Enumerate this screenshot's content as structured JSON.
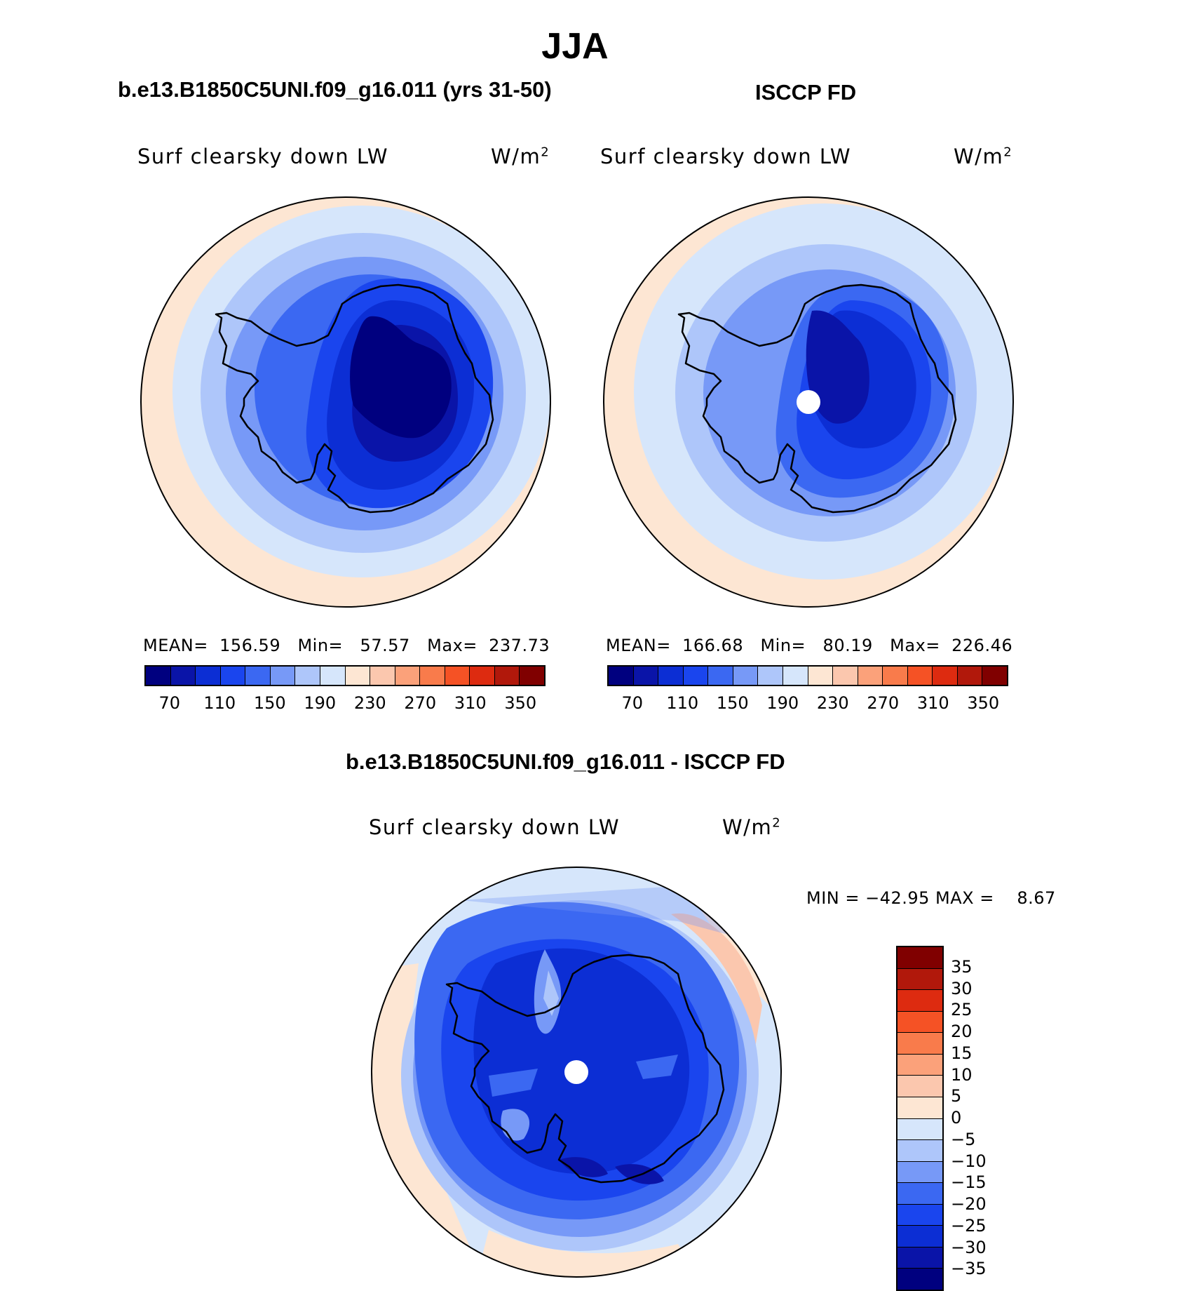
{
  "title": "JJA",
  "palette": {
    "model_obs": [
      "#00007F",
      "#0A14A8",
      "#0C2ED4",
      "#1A45EE",
      "#3B68F2",
      "#7799F7",
      "#AEC6FA",
      "#D6E6FB",
      "#FDE6D3",
      "#FBC7AE",
      "#FBA17A",
      "#F97B4B",
      "#F55225",
      "#DD2B10",
      "#B1180B",
      "#800000"
    ],
    "difference": [
      "#00007F",
      "#0A14A8",
      "#0C2ED4",
      "#1A45EE",
      "#3B68F2",
      "#7799F7",
      "#AEC6FA",
      "#D6E6FB",
      "#FDE6D3",
      "#FBC7AE",
      "#FBA17A",
      "#F97B4B",
      "#F55225",
      "#DD2B10",
      "#B1180B",
      "#800000"
    ]
  },
  "panels": {
    "model": {
      "title": "b.e13.B1850C5UNI.f09_g16.011 (yrs 31-50)",
      "variable": "Surf clearsky down LW",
      "unit": "W/m",
      "unit_sup": "2",
      "stats": "MEAN=  156.59   Min=   57.57   Max=  237.73"
    },
    "obs": {
      "title": "ISCCP FD",
      "variable": "Surf clearsky down LW",
      "unit": "W/m",
      "unit_sup": "2",
      "stats": "MEAN=  166.68   Min=   80.19   Max=  226.46"
    },
    "diff": {
      "title": "b.e13.B1850C5UNI.f09_g16.011 - ISCCP FD",
      "variable": "Surf clearsky down LW",
      "unit": "W/m",
      "unit_sup": "2",
      "stats": "MIN = −42.95 MAX =    8.67"
    }
  },
  "colorbar_ticks": [
    "70",
    "110",
    "150",
    "190",
    "230",
    "270",
    "310",
    "350"
  ],
  "diff_colorbar_ticks": [
    "35",
    "30",
    "25",
    "20",
    "15",
    "10",
    "5",
    "0",
    "−5",
    "−10",
    "−15",
    "−20",
    "−25",
    "−30",
    "−35"
  ]
}
